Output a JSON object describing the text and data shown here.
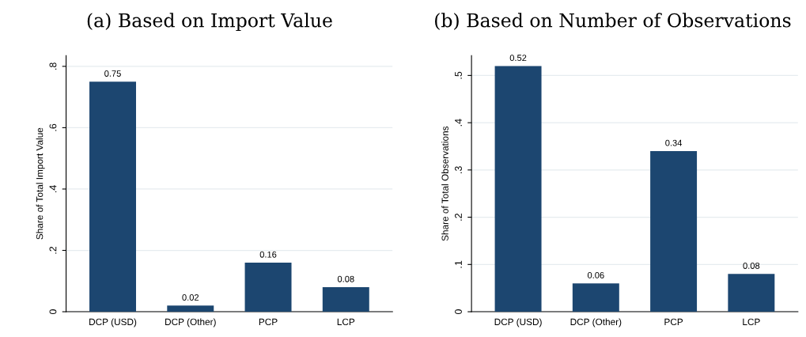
{
  "chart_data": [
    {
      "type": "bar",
      "title": "(a) Based on Import Value",
      "ylabel": "Share of Total Import Value",
      "categories": [
        "DCP (USD)",
        "DCP (Other)",
        "PCP",
        "LCP"
      ],
      "values": [
        0.75,
        0.02,
        0.16,
        0.08
      ],
      "color": "#1c4670",
      "data_labels": true,
      "ylim": [
        0,
        0.835
      ],
      "yticks": [
        0,
        {
          "value": 0.2,
          "label": ".2"
        },
        {
          "value": 0.4,
          "label": ".4"
        },
        {
          "value": 0.6,
          "label": ".6"
        },
        {
          "value": 0.8,
          "label": ".8"
        }
      ],
      "grid": "y"
    },
    {
      "type": "bar",
      "title": "(b) Based on Number of Observations",
      "ylabel": "Share of Total Observations",
      "categories": [
        "DCP (USD)",
        "DCP (Other)",
        "PCP",
        "LCP"
      ],
      "values": [
        0.52,
        0.06,
        0.34,
        0.08
      ],
      "color": "#1c4670",
      "data_labels": true,
      "ylim": [
        0,
        0.542
      ],
      "yticks": [
        0,
        {
          "value": 0.1,
          "label": ".1"
        },
        {
          "value": 0.2,
          "label": ".2"
        },
        {
          "value": 0.3,
          "label": ".3"
        },
        {
          "value": 0.4,
          "label": ".4"
        },
        {
          "value": 0.5,
          "label": ".5"
        }
      ],
      "grid": "y"
    }
  ]
}
